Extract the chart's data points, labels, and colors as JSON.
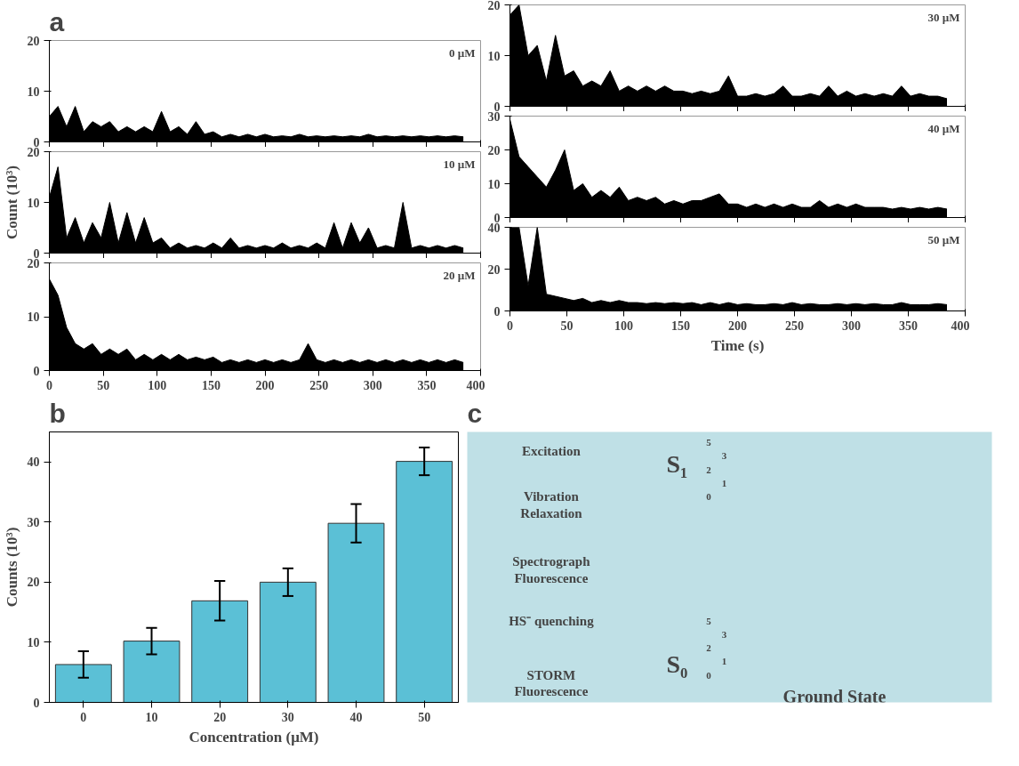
{
  "chart_data": [
    {
      "type": "area",
      "title": "a",
      "x": [
        0,
        8,
        16,
        24,
        32,
        40,
        48,
        56,
        64,
        72,
        80,
        88,
        96,
        104,
        112,
        120,
        128,
        136,
        144,
        152,
        160,
        168,
        176,
        184,
        192,
        200,
        208,
        216,
        224,
        232,
        240,
        248,
        256,
        264,
        272,
        280,
        288,
        296,
        304,
        312,
        320,
        328,
        336,
        344,
        352,
        360,
        368,
        376,
        384
      ],
      "series": [
        {
          "color": "#000000",
          "values": [
            5,
            7,
            3,
            7,
            2,
            4,
            3,
            4,
            2,
            3,
            2,
            3,
            2,
            6,
            2,
            3,
            1.5,
            4,
            1.5,
            2,
            1,
            1.5,
            1,
            1.5,
            1,
            1.5,
            1,
            1.2,
            1,
            1.5,
            1,
            1.2,
            1,
            1.2,
            1,
            1.2,
            1,
            1.5,
            1,
            1.2,
            1,
            1.2,
            1,
            1.2,
            1,
            1.2,
            1,
            1.2,
            1
          ]
        }
      ],
      "xlim": [
        0,
        400
      ],
      "xticks": [
        0,
        50,
        100,
        150,
        200,
        250,
        300,
        350,
        400
      ],
      "ylim": [
        0,
        20
      ],
      "yticks": [
        0,
        10,
        20
      ],
      "tick_labels": "y",
      "annotations": [
        "0 µM"
      ]
    },
    {
      "type": "area",
      "ylabel": "Count (10³)",
      "x": [
        0,
        8,
        16,
        24,
        32,
        40,
        48,
        56,
        64,
        72,
        80,
        88,
        96,
        104,
        112,
        120,
        128,
        136,
        144,
        152,
        160,
        168,
        176,
        184,
        192,
        200,
        208,
        216,
        224,
        232,
        240,
        248,
        256,
        264,
        272,
        280,
        288,
        296,
        304,
        312,
        320,
        328,
        336,
        344,
        352,
        360,
        368,
        376,
        384
      ],
      "series": [
        {
          "color": "#000000",
          "values": [
            11,
            17,
            3,
            7,
            2,
            6,
            3,
            10,
            2,
            8,
            2,
            7,
            2,
            3,
            1,
            2,
            1,
            1.5,
            1,
            2,
            1,
            3,
            1,
            1.5,
            1,
            1.5,
            1,
            2,
            1,
            1.5,
            1,
            2,
            1,
            6,
            1,
            6,
            2,
            5,
            1,
            1.5,
            1,
            10,
            1,
            1.5,
            1,
            1.5,
            1,
            1.5,
            1
          ]
        }
      ],
      "xlim": [
        0,
        400
      ],
      "xticks": [
        0,
        50,
        100,
        150,
        200,
        250,
        300,
        350,
        400
      ],
      "ylim": [
        0,
        20
      ],
      "yticks": [
        0,
        10,
        20
      ],
      "tick_labels": "y",
      "annotations": [
        "10 µM"
      ]
    },
    {
      "type": "area",
      "x": [
        0,
        8,
        16,
        24,
        32,
        40,
        48,
        56,
        64,
        72,
        80,
        88,
        96,
        104,
        112,
        120,
        128,
        136,
        144,
        152,
        160,
        168,
        176,
        184,
        192,
        200,
        208,
        216,
        224,
        232,
        240,
        248,
        256,
        264,
        272,
        280,
        288,
        296,
        304,
        312,
        320,
        328,
        336,
        344,
        352,
        360,
        368,
        376,
        384
      ],
      "series": [
        {
          "color": "#000000",
          "values": [
            17,
            14,
            8,
            5,
            4,
            5,
            3,
            4,
            3,
            4,
            2,
            3,
            2,
            3,
            2,
            3,
            2,
            2.5,
            2,
            2.5,
            1.5,
            2,
            1.5,
            2,
            1.5,
            2,
            1.5,
            2,
            1.5,
            2,
            5,
            2,
            1.5,
            2,
            1.5,
            2,
            1.5,
            2,
            1.5,
            2,
            1.5,
            2,
            1.5,
            2,
            1.5,
            2,
            1.5,
            2,
            1.5
          ]
        }
      ],
      "xlim": [
        0,
        400
      ],
      "xticks": [
        0,
        50,
        100,
        150,
        200,
        250,
        300,
        350,
        400
      ],
      "ylim": [
        0,
        20
      ],
      "yticks": [
        0,
        10,
        20
      ],
      "annotations": [
        "20 µM"
      ]
    },
    {
      "type": "area",
      "x": [
        0,
        8,
        16,
        24,
        32,
        40,
        48,
        56,
        64,
        72,
        80,
        88,
        96,
        104,
        112,
        120,
        128,
        136,
        144,
        152,
        160,
        168,
        176,
        184,
        192,
        200,
        208,
        216,
        224,
        232,
        240,
        248,
        256,
        264,
        272,
        280,
        288,
        296,
        304,
        312,
        320,
        328,
        336,
        344,
        352,
        360,
        368,
        376,
        384
      ],
      "series": [
        {
          "color": "#000000",
          "values": [
            18,
            20,
            10,
            12,
            5,
            14,
            6,
            7,
            4,
            5,
            4,
            7,
            3,
            4,
            3,
            4,
            3,
            4,
            3,
            3,
            2.5,
            3,
            2.5,
            3,
            6,
            2,
            2,
            2.5,
            2,
            2.5,
            4,
            2,
            2,
            2.5,
            2,
            4,
            2,
            3,
            2,
            2.5,
            2,
            2.5,
            2,
            4,
            2,
            2.5,
            2,
            2,
            1.5
          ]
        }
      ],
      "xlim": [
        0,
        400
      ],
      "xticks": [
        0,
        50,
        100,
        150,
        200,
        250,
        300,
        350,
        400
      ],
      "ylim": [
        0,
        20
      ],
      "yticks": [
        0,
        10,
        20
      ],
      "tick_labels": "y",
      "annotations": [
        "30 µM"
      ]
    },
    {
      "type": "area",
      "x": [
        0,
        8,
        16,
        24,
        32,
        40,
        48,
        56,
        64,
        72,
        80,
        88,
        96,
        104,
        112,
        120,
        128,
        136,
        144,
        152,
        160,
        168,
        176,
        184,
        192,
        200,
        208,
        216,
        224,
        232,
        240,
        248,
        256,
        264,
        272,
        280,
        288,
        296,
        304,
        312,
        320,
        328,
        336,
        344,
        352,
        360,
        368,
        376,
        384
      ],
      "series": [
        {
          "color": "#000000",
          "values": [
            29,
            18,
            15,
            12,
            9,
            14,
            20,
            8,
            10,
            6,
            8,
            6,
            9,
            5,
            6,
            5,
            6,
            4,
            5,
            4,
            5,
            5,
            6,
            7,
            4,
            4,
            3,
            4,
            3,
            4,
            3,
            4,
            3,
            3,
            5,
            3,
            4,
            3,
            4,
            3,
            3,
            3,
            2.5,
            3,
            2.5,
            3,
            2.5,
            3,
            2.5
          ]
        }
      ],
      "xlim": [
        0,
        400
      ],
      "xticks": [
        0,
        50,
        100,
        150,
        200,
        250,
        300,
        350,
        400
      ],
      "ylim": [
        0,
        30
      ],
      "yticks": [
        0,
        10,
        20,
        30
      ],
      "tick_labels": "y",
      "annotations": [
        "40 µM"
      ]
    },
    {
      "type": "area",
      "xlabel": "Time (s)",
      "x": [
        0,
        8,
        16,
        24,
        32,
        40,
        48,
        56,
        64,
        72,
        80,
        88,
        96,
        104,
        112,
        120,
        128,
        136,
        144,
        152,
        160,
        168,
        176,
        184,
        192,
        200,
        208,
        216,
        224,
        232,
        240,
        248,
        256,
        264,
        272,
        280,
        288,
        296,
        304,
        312,
        320,
        328,
        336,
        344,
        352,
        360,
        368,
        376,
        384
      ],
      "series": [
        {
          "color": "#000000",
          "values": [
            40,
            40,
            12,
            40,
            8,
            7,
            6,
            5,
            6,
            4,
            5,
            4,
            5,
            4,
            4,
            3.5,
            4,
            3.5,
            4,
            3.5,
            4,
            3,
            4,
            3,
            4,
            3,
            3.5,
            3,
            3,
            3.5,
            3,
            4,
            3,
            3.5,
            3,
            3,
            3.5,
            3,
            3.5,
            3,
            3.5,
            3,
            3,
            4,
            3,
            3,
            3,
            3.5,
            3
          ]
        }
      ],
      "xlim": [
        0,
        400
      ],
      "xticks": [
        0,
        50,
        100,
        150,
        200,
        250,
        300,
        350,
        400
      ],
      "ylim": [
        0,
        40
      ],
      "yticks": [
        0,
        20,
        40
      ],
      "annotations": [
        "50 µM"
      ]
    },
    {
      "type": "bar",
      "title": "b",
      "xlabel": "Concentration (μM)",
      "ylabel": "Counts (10³)",
      "categories": [
        "0",
        "10",
        "20",
        "30",
        "40",
        "50"
      ],
      "values": [
        6.3,
        10.2,
        16.9,
        20,
        29.8,
        40.1
      ],
      "errors": [
        2.2,
        2.2,
        3.3,
        2.3,
        3.2,
        2.3
      ],
      "colors": [
        "#5bc0d6",
        "#5bc0d6",
        "#5bc0d6",
        "#5bc0d6",
        "#5bc0d6",
        "#5bc0d6"
      ],
      "ylim": [
        0,
        45
      ],
      "yticks": [
        0,
        10,
        20,
        30,
        40
      ]
    },
    {
      "type": "other",
      "title": "c",
      "annotations": [
        "Excitation",
        "Vibration Relaxation",
        "Spectrograph Fluorescence",
        "HS⁻ quenching",
        "STORM Fluorescence",
        "S₁",
        "S₀",
        "Ground State",
        "5",
        "3",
        "2",
        "1",
        "0",
        "5",
        "3",
        "2",
        "1",
        "0"
      ]
    }
  ]
}
